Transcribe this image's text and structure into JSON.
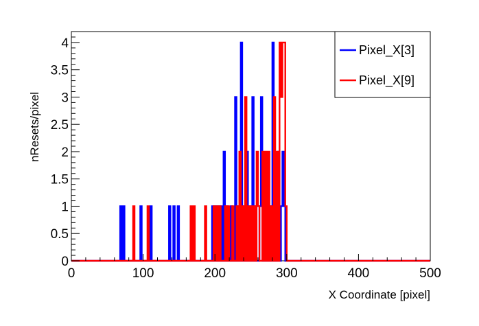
{
  "chart_data": {
    "type": "histogram",
    "title": "",
    "xlabel": "X Coordinate [pixel]",
    "ylabel": "nResets/pixel",
    "xlim": [
      0,
      500
    ],
    "ylim": [
      0,
      4.2
    ],
    "xticks": [
      "0",
      "100",
      "200",
      "300",
      "400",
      "500"
    ],
    "yticks": [
      "0",
      "0.5",
      "1",
      "1.5",
      "2",
      "2.5",
      "3",
      "3.5",
      "4"
    ],
    "bin_width": 2,
    "grid": false,
    "legend_position": "top-right",
    "series": [
      {
        "name": "Pixel_X[3]",
        "color": "#0000ff",
        "bins": [
          [
            68,
            1
          ],
          [
            72,
            1
          ],
          [
            96,
            1
          ],
          [
            110,
            1
          ],
          [
            136,
            1
          ],
          [
            142,
            1
          ],
          [
            148,
            1
          ],
          [
            196,
            1
          ],
          [
            200,
            1
          ],
          [
            204,
            1
          ],
          [
            208,
            1
          ],
          [
            212,
            2
          ],
          [
            216,
            1
          ],
          [
            222,
            1
          ],
          [
            228,
            3
          ],
          [
            232,
            1
          ],
          [
            236,
            4
          ],
          [
            240,
            1
          ],
          [
            244,
            2
          ],
          [
            248,
            1
          ],
          [
            252,
            3
          ],
          [
            256,
            1
          ],
          [
            262,
            1
          ],
          [
            264,
            3
          ],
          [
            268,
            1
          ],
          [
            272,
            1
          ],
          [
            276,
            1
          ],
          [
            280,
            4
          ],
          [
            284,
            1
          ],
          [
            288,
            2
          ],
          [
            292,
            1
          ],
          [
            294,
            2
          ],
          [
            296,
            1
          ]
        ]
      },
      {
        "name": "Pixel_X[9]",
        "color": "#ff0000",
        "bins": [
          [
            86,
            1
          ],
          [
            106,
            1
          ],
          [
            166,
            1
          ],
          [
            170,
            1
          ],
          [
            186,
            1
          ],
          [
            198,
            1
          ],
          [
            202,
            1
          ],
          [
            206,
            1
          ],
          [
            214,
            1
          ],
          [
            218,
            1
          ],
          [
            224,
            1
          ],
          [
            230,
            1
          ],
          [
            234,
            2
          ],
          [
            238,
            1
          ],
          [
            242,
            3
          ],
          [
            246,
            1
          ],
          [
            250,
            1
          ],
          [
            254,
            1
          ],
          [
            258,
            2
          ],
          [
            260,
            1
          ],
          [
            266,
            2
          ],
          [
            270,
            2
          ],
          [
            274,
            2
          ],
          [
            278,
            1
          ],
          [
            282,
            3
          ],
          [
            286,
            2
          ],
          [
            290,
            4
          ],
          [
            292,
            3
          ],
          [
            294,
            4
          ],
          [
            296,
            4
          ],
          [
            298,
            1
          ]
        ]
      }
    ]
  }
}
